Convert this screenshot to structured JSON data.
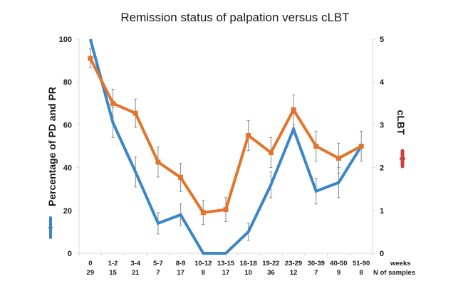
{
  "chart_data": {
    "type": "line",
    "title": "Remission status of palpation versus cLBT",
    "xlabel": "weeks",
    "xlabel_secondary": "N of samples",
    "categories": [
      "0",
      "1-2",
      "3-4",
      "5-7",
      "8-9",
      "10-12",
      "13-15",
      "16-18",
      "19-22",
      "23-29",
      "30-39",
      "40-50",
      "51-90"
    ],
    "n_samples": [
      "29",
      "15",
      "21",
      "7",
      "17",
      "8",
      "17",
      "10",
      "36",
      "12",
      "7",
      "9",
      "8"
    ],
    "y_left": {
      "label": "Percentage of PD and PR",
      "ylim": [
        0,
        100
      ],
      "ticks": [
        "0",
        "20",
        "40",
        "60",
        "80",
        "100"
      ]
    },
    "y_right": {
      "label": "cLBT",
      "ylim": [
        0,
        5
      ],
      "ticks": [
        "0",
        "1",
        "2",
        "3",
        "4",
        "5"
      ]
    },
    "series": [
      {
        "name": "Percentage of PD and PR",
        "axis": "left",
        "color": "#3a86c8",
        "values": [
          100,
          61,
          38,
          14,
          18,
          0,
          0,
          10,
          32,
          58,
          29,
          33,
          50
        ],
        "errors": [
          0,
          7,
          7,
          5,
          5,
          0,
          0,
          4,
          6,
          0,
          6,
          7,
          0
        ]
      },
      {
        "name": "cLBT",
        "axis": "right",
        "color": "#e2742b",
        "values": [
          4.55,
          3.5,
          3.27,
          2.13,
          1.77,
          0.95,
          1.02,
          2.75,
          2.35,
          3.35,
          2.5,
          2.22,
          2.5
        ],
        "errors": [
          0.22,
          0.33,
          0.33,
          0.35,
          0.33,
          0.28,
          0.28,
          0.35,
          0.35,
          0.35,
          0.35,
          0.35,
          0.35
        ]
      }
    ],
    "legend": [
      {
        "label": "Percentage of PD and PR",
        "color": "#3a86c8",
        "placement": "left"
      },
      {
        "label": "cLBT",
        "color": "#c9413f",
        "placement": "right"
      }
    ],
    "grid": false
  }
}
